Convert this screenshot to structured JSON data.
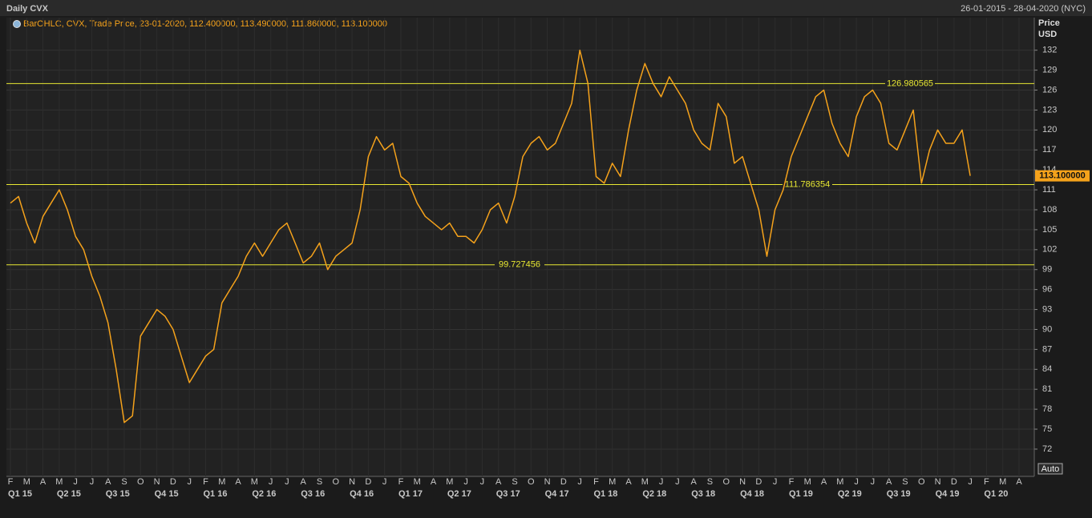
{
  "chart_data": {
    "type": "line",
    "title": "Daily CVX",
    "date_range": "26-01-2015 - 28-04-2020 (NYC)",
    "legend_text": "BarOHLC, CVX, Trade Price, 23-01-2020, 112.400000, 113.490000, 111.860000, 113.100000",
    "y_axis_title": "Price",
    "y_axis_unit": "USD",
    "scale_mode": "Auto",
    "categories": [
      "F",
      null,
      "M",
      null,
      "A",
      null,
      "M",
      null,
      "J",
      null,
      "J",
      null,
      "A",
      null,
      "S",
      null,
      "O",
      null,
      "N",
      null,
      "D",
      null,
      "J",
      null,
      "F",
      null,
      "M",
      null,
      "A",
      null,
      "M",
      null,
      "J",
      null,
      "J",
      null,
      "A",
      null,
      "S",
      null,
      "O",
      null,
      "N",
      null,
      "D",
      null,
      "J",
      null,
      "F",
      null,
      "M",
      null,
      "A",
      null,
      "M",
      null,
      "J",
      null,
      "J",
      null,
      "A",
      null,
      "S",
      null,
      "O",
      null,
      "N",
      null,
      "D",
      null,
      "J",
      null,
      "F",
      null,
      "M",
      null,
      "A",
      null,
      "M",
      null,
      "J",
      null,
      "J",
      null,
      "A",
      null,
      "S",
      null,
      "O",
      null,
      "N",
      null,
      "D",
      null,
      "J",
      null,
      "F",
      null,
      "M",
      null,
      "A",
      null,
      "M",
      null,
      "J",
      null,
      "J",
      null,
      "A",
      null,
      "S",
      null,
      "O",
      null,
      "N",
      null,
      "D",
      null,
      "J",
      null,
      "F",
      null,
      "M",
      null,
      "A"
    ],
    "quarters": [
      "Q1 15",
      "Q2 15",
      "Q3 15",
      "Q4 15",
      "Q1 16",
      "Q2 16",
      "Q3 16",
      "Q4 16",
      "Q1 17",
      "Q2 17",
      "Q3 17",
      "Q4 17",
      "Q1 18",
      "Q2 18",
      "Q3 18",
      "Q4 18",
      "Q1 19",
      "Q2 19",
      "Q3 19",
      "Q4 19",
      "Q1 20"
    ],
    "series": [
      {
        "name": "CVX",
        "color": "#f5a21b",
        "values": [
          109,
          110,
          106,
          103,
          107,
          109,
          111,
          108,
          104,
          102,
          98,
          95,
          91,
          84,
          76,
          77,
          89,
          91,
          93,
          92,
          90,
          86,
          82,
          84,
          86,
          87,
          94,
          96,
          98,
          101,
          103,
          101,
          103,
          105,
          106,
          103,
          100,
          101,
          103,
          99,
          101,
          102,
          103,
          108,
          116,
          119,
          117,
          118,
          113,
          112,
          109,
          107,
          106,
          105,
          106,
          104,
          104,
          103,
          105,
          108,
          109,
          106,
          110,
          116,
          118,
          119,
          117,
          118,
          121,
          124,
          132,
          127,
          113,
          112,
          115,
          113,
          120,
          126,
          130,
          127,
          125,
          128,
          126,
          124,
          120,
          118,
          117,
          124,
          122,
          115,
          116,
          112,
          108,
          101,
          108,
          111,
          116,
          119,
          122,
          125,
          126,
          121,
          118,
          116,
          122,
          125,
          126,
          124,
          118,
          117,
          120,
          123,
          112,
          117,
          120,
          118,
          118,
          120,
          113.1,
          null,
          null,
          null,
          null,
          null,
          null
        ]
      }
    ],
    "ylim": [
      67.9,
      136.9
    ],
    "yticks": [
      72,
      75,
      78,
      81,
      84,
      87,
      90,
      93,
      96,
      99,
      102,
      105,
      108,
      111,
      114,
      117,
      120,
      123,
      126,
      129,
      132
    ],
    "levels": [
      126.980565,
      111.786354,
      99.727456
    ],
    "level_color": "#e8e832",
    "last_price": {
      "value": 113.1,
      "label": "113.100000"
    },
    "grid": true
  }
}
